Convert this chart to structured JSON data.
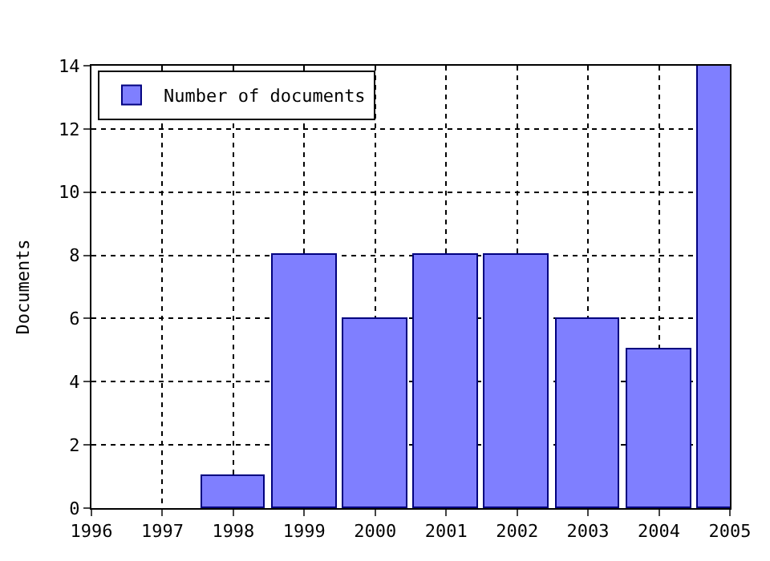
{
  "chart_data": {
    "type": "bar",
    "ylabel": "Documents",
    "x": [
      1998,
      1999,
      2000,
      2001,
      2002,
      2003,
      2004,
      2005
    ],
    "series": [
      {
        "name": "Number of documents",
        "color": "#7f7fff",
        "values": [
          1,
          8,
          6,
          8,
          8,
          6,
          5,
          14
        ]
      }
    ],
    "xlim": [
      1996,
      2005
    ],
    "xticks": [
      1996,
      1997,
      1998,
      1999,
      2000,
      2001,
      2002,
      2003,
      2004,
      2005
    ],
    "ylim": [
      0,
      14
    ],
    "yticks": [
      0,
      2,
      4,
      6,
      8,
      10,
      12,
      14
    ],
    "grid": true,
    "legend": "top left"
  }
}
